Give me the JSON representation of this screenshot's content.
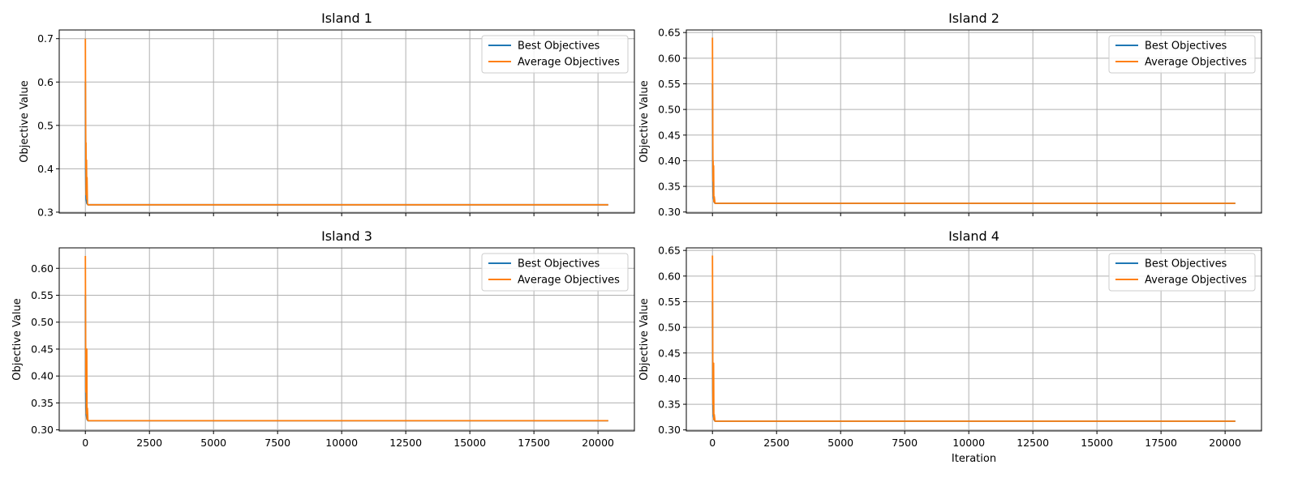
{
  "figure": {},
  "chart_data": [
    {
      "type": "line",
      "title": "Island 1",
      "ylabel": "Objective Value",
      "xlabel": "",
      "xlim": [
        -1020,
        21420
      ],
      "ylim": [
        0.298,
        0.72
      ],
      "xticks": [
        0,
        2500,
        5000,
        7500,
        10000,
        12500,
        15000,
        17500,
        20000
      ],
      "xticklabels": [],
      "yticks": [
        0.3,
        0.4,
        0.5,
        0.6,
        0.7
      ],
      "yticklabels": [
        "0.3",
        "0.4",
        "0.5",
        "0.6",
        "0.7"
      ],
      "grid": true,
      "legend": "top-right",
      "series": [
        {
          "name": "Best Objectives",
          "color": "#1f77b4",
          "x": [
            0,
            5,
            10,
            20,
            30,
            60,
            100,
            20400
          ],
          "y": [
            0.6,
            0.46,
            0.4,
            0.35,
            0.33,
            0.32,
            0.317,
            0.317
          ]
        },
        {
          "name": "Average Objectives",
          "color": "#ff7f0e",
          "x": [
            0,
            5,
            10,
            20,
            25,
            30,
            45,
            55,
            65,
            80,
            100,
            20400
          ],
          "y": [
            0.7,
            0.6,
            0.52,
            0.4,
            0.46,
            0.34,
            0.42,
            0.33,
            0.38,
            0.32,
            0.317,
            0.317
          ]
        }
      ]
    },
    {
      "type": "line",
      "title": "Island 2",
      "ylabel": "Objective Value",
      "xlabel": "",
      "xlim": [
        -1020,
        21420
      ],
      "ylim": [
        0.298,
        0.655
      ],
      "xticks": [
        0,
        2500,
        5000,
        7500,
        10000,
        12500,
        15000,
        17500,
        20000
      ],
      "xticklabels": [],
      "yticks": [
        0.3,
        0.35,
        0.4,
        0.45,
        0.5,
        0.55,
        0.6,
        0.65
      ],
      "yticklabels": [
        "0.30",
        "0.35",
        "0.40",
        "0.45",
        "0.50",
        "0.55",
        "0.60",
        "0.65"
      ],
      "grid": true,
      "legend": "top-right",
      "series": [
        {
          "name": "Best Objectives",
          "color": "#1f77b4",
          "x": [
            0,
            5,
            10,
            20,
            30,
            60,
            100,
            20400
          ],
          "y": [
            0.55,
            0.45,
            0.38,
            0.34,
            0.33,
            0.32,
            0.317,
            0.317
          ]
        },
        {
          "name": "Average Objectives",
          "color": "#ff7f0e",
          "x": [
            0,
            5,
            10,
            20,
            25,
            35,
            45,
            55,
            70,
            100,
            20400
          ],
          "y": [
            0.64,
            0.55,
            0.47,
            0.36,
            0.4,
            0.33,
            0.39,
            0.32,
            0.33,
            0.317,
            0.317
          ]
        }
      ]
    },
    {
      "type": "line",
      "title": "Island 3",
      "ylabel": "Objective Value",
      "xlabel": "",
      "xlim": [
        -1020,
        21420
      ],
      "ylim": [
        0.298,
        0.638
      ],
      "xticks": [
        0,
        2500,
        5000,
        7500,
        10000,
        12500,
        15000,
        17500,
        20000
      ],
      "xticklabels": [
        "0",
        "2500",
        "5000",
        "7500",
        "10000",
        "12500",
        "15000",
        "17500",
        "20000"
      ],
      "yticks": [
        0.3,
        0.35,
        0.4,
        0.45,
        0.5,
        0.55,
        0.6
      ],
      "yticklabels": [
        "0.30",
        "0.35",
        "0.40",
        "0.45",
        "0.50",
        "0.55",
        "0.60"
      ],
      "grid": true,
      "legend": "top-right",
      "series": [
        {
          "name": "Best Objectives",
          "color": "#1f77b4",
          "x": [
            0,
            5,
            10,
            20,
            30,
            60,
            100,
            20400
          ],
          "y": [
            0.55,
            0.44,
            0.38,
            0.34,
            0.33,
            0.32,
            0.317,
            0.317
          ]
        },
        {
          "name": "Average Objectives",
          "color": "#ff7f0e",
          "x": [
            0,
            5,
            10,
            20,
            30,
            40,
            55,
            65,
            80,
            100,
            20400
          ],
          "y": [
            0.623,
            0.55,
            0.47,
            0.37,
            0.44,
            0.33,
            0.45,
            0.32,
            0.34,
            0.317,
            0.317
          ]
        }
      ]
    },
    {
      "type": "line",
      "title": "Island 4",
      "ylabel": "Objective Value",
      "xlabel": "Iteration",
      "xlim": [
        -1020,
        21420
      ],
      "ylim": [
        0.298,
        0.655
      ],
      "xticks": [
        0,
        2500,
        5000,
        7500,
        10000,
        12500,
        15000,
        17500,
        20000
      ],
      "xticklabels": [
        "0",
        "2500",
        "5000",
        "7500",
        "10000",
        "12500",
        "15000",
        "17500",
        "20000"
      ],
      "yticks": [
        0.3,
        0.35,
        0.4,
        0.45,
        0.5,
        0.55,
        0.6,
        0.65
      ],
      "yticklabels": [
        "0.30",
        "0.35",
        "0.40",
        "0.45",
        "0.50",
        "0.55",
        "0.60",
        "0.65"
      ],
      "grid": true,
      "legend": "top-right",
      "series": [
        {
          "name": "Best Objectives",
          "color": "#1f77b4",
          "x": [
            0,
            5,
            10,
            20,
            30,
            60,
            100,
            20400
          ],
          "y": [
            0.55,
            0.45,
            0.38,
            0.34,
            0.33,
            0.32,
            0.317,
            0.317
          ]
        },
        {
          "name": "Average Objectives",
          "color": "#ff7f0e",
          "x": [
            0,
            5,
            10,
            20,
            25,
            35,
            45,
            55,
            70,
            100,
            20400
          ],
          "y": [
            0.64,
            0.55,
            0.46,
            0.35,
            0.4,
            0.33,
            0.43,
            0.32,
            0.33,
            0.317,
            0.317
          ]
        }
      ]
    }
  ]
}
